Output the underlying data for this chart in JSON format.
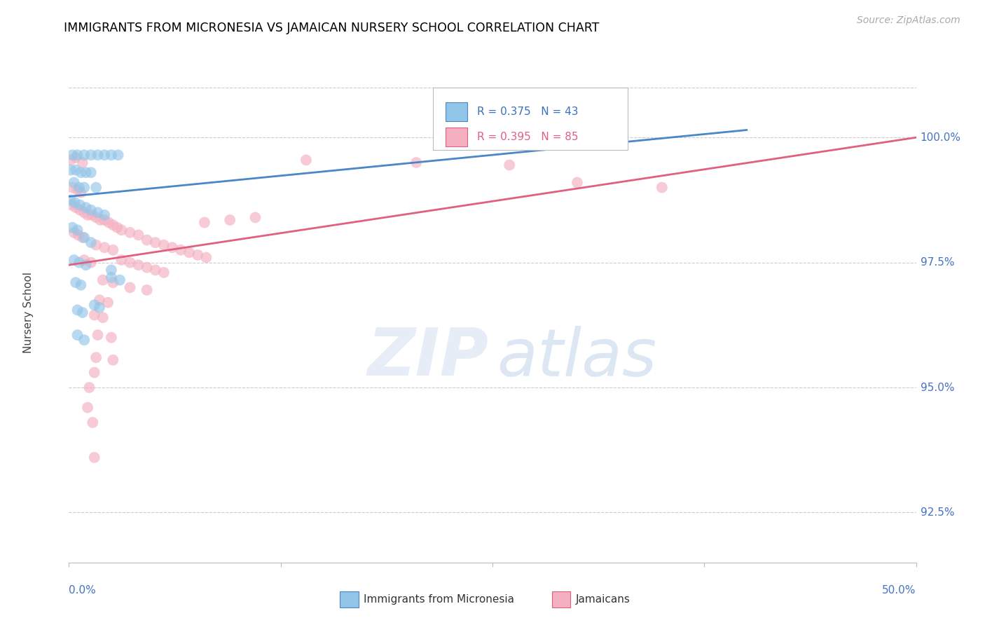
{
  "title": "IMMIGRANTS FROM MICRONESIA VS JAMAICAN NURSERY SCHOOL CORRELATION CHART",
  "source": "Source: ZipAtlas.com",
  "ylabel": "Nursery School",
  "ytick_labels": [
    "100.0%",
    "97.5%",
    "95.0%",
    "92.5%"
  ],
  "ytick_values": [
    100.0,
    97.5,
    95.0,
    92.5
  ],
  "xlim": [
    0.0,
    50.0
  ],
  "ylim": [
    91.5,
    101.5
  ],
  "blue_color": "#92c5e8",
  "pink_color": "#f4afc0",
  "blue_line_color": "#4a86c8",
  "pink_line_color": "#e06080",
  "blue_scatter": [
    [
      0.2,
      99.65
    ],
    [
      0.5,
      99.65
    ],
    [
      0.9,
      99.65
    ],
    [
      1.3,
      99.65
    ],
    [
      1.7,
      99.65
    ],
    [
      2.1,
      99.65
    ],
    [
      2.5,
      99.65
    ],
    [
      2.9,
      99.65
    ],
    [
      0.1,
      99.35
    ],
    [
      0.4,
      99.35
    ],
    [
      0.7,
      99.3
    ],
    [
      1.0,
      99.3
    ],
    [
      1.3,
      99.3
    ],
    [
      0.3,
      99.1
    ],
    [
      0.6,
      99.0
    ],
    [
      0.9,
      99.0
    ],
    [
      1.6,
      99.0
    ],
    [
      0.1,
      98.75
    ],
    [
      0.35,
      98.7
    ],
    [
      0.65,
      98.65
    ],
    [
      1.0,
      98.6
    ],
    [
      1.3,
      98.55
    ],
    [
      1.7,
      98.5
    ],
    [
      2.1,
      98.45
    ],
    [
      0.2,
      98.2
    ],
    [
      0.5,
      98.15
    ],
    [
      0.9,
      98.0
    ],
    [
      1.3,
      97.9
    ],
    [
      0.3,
      97.55
    ],
    [
      0.6,
      97.5
    ],
    [
      1.0,
      97.45
    ],
    [
      2.5,
      97.35
    ],
    [
      0.4,
      97.1
    ],
    [
      0.7,
      97.05
    ],
    [
      0.5,
      96.55
    ],
    [
      0.8,
      96.5
    ],
    [
      0.5,
      96.05
    ],
    [
      0.9,
      95.95
    ],
    [
      1.5,
      96.65
    ],
    [
      1.8,
      96.6
    ],
    [
      2.5,
      97.2
    ],
    [
      3.0,
      97.15
    ]
  ],
  "pink_scatter": [
    [
      0.1,
      99.55
    ],
    [
      0.4,
      99.6
    ],
    [
      0.8,
      99.5
    ],
    [
      14.0,
      99.55
    ],
    [
      20.5,
      99.5
    ],
    [
      26.0,
      99.45
    ],
    [
      0.2,
      99.0
    ],
    [
      0.5,
      98.95
    ],
    [
      0.7,
      98.9
    ],
    [
      0.15,
      98.65
    ],
    [
      0.4,
      98.6
    ],
    [
      0.65,
      98.55
    ],
    [
      0.9,
      98.5
    ],
    [
      1.1,
      98.45
    ],
    [
      1.35,
      98.45
    ],
    [
      1.6,
      98.4
    ],
    [
      1.85,
      98.35
    ],
    [
      2.1,
      98.35
    ],
    [
      2.35,
      98.3
    ],
    [
      2.6,
      98.25
    ],
    [
      2.85,
      98.2
    ],
    [
      3.1,
      98.15
    ],
    [
      3.6,
      98.1
    ],
    [
      4.1,
      98.05
    ],
    [
      4.6,
      97.95
    ],
    [
      5.1,
      97.9
    ],
    [
      5.6,
      97.85
    ],
    [
      6.1,
      97.8
    ],
    [
      6.6,
      97.75
    ],
    [
      7.1,
      97.7
    ],
    [
      7.6,
      97.65
    ],
    [
      8.1,
      97.6
    ],
    [
      0.3,
      98.1
    ],
    [
      0.55,
      98.05
    ],
    [
      0.8,
      98.0
    ],
    [
      1.6,
      97.85
    ],
    [
      2.1,
      97.8
    ],
    [
      2.6,
      97.75
    ],
    [
      3.1,
      97.55
    ],
    [
      3.6,
      97.5
    ],
    [
      4.1,
      97.45
    ],
    [
      4.6,
      97.4
    ],
    [
      5.1,
      97.35
    ],
    [
      5.6,
      97.3
    ],
    [
      2.0,
      97.15
    ],
    [
      2.6,
      97.1
    ],
    [
      3.6,
      97.0
    ],
    [
      4.6,
      96.95
    ],
    [
      1.8,
      96.75
    ],
    [
      2.3,
      96.7
    ],
    [
      1.5,
      96.45
    ],
    [
      2.0,
      96.4
    ],
    [
      1.7,
      96.05
    ],
    [
      2.5,
      96.0
    ],
    [
      1.6,
      95.6
    ],
    [
      2.6,
      95.55
    ],
    [
      1.5,
      95.3
    ],
    [
      1.2,
      95.0
    ],
    [
      1.1,
      94.6
    ],
    [
      1.4,
      94.3
    ],
    [
      1.5,
      93.6
    ],
    [
      8.0,
      98.3
    ],
    [
      9.5,
      98.35
    ],
    [
      11.0,
      98.4
    ],
    [
      30.0,
      99.1
    ],
    [
      35.0,
      99.0
    ],
    [
      0.9,
      97.55
    ],
    [
      1.3,
      97.5
    ]
  ],
  "blue_line": {
    "x0": 0.0,
    "y0": 98.82,
    "x1": 40.0,
    "y1": 100.15
  },
  "pink_line": {
    "x0": 0.0,
    "y0": 97.45,
    "x1": 50.0,
    "y1": 100.0
  }
}
